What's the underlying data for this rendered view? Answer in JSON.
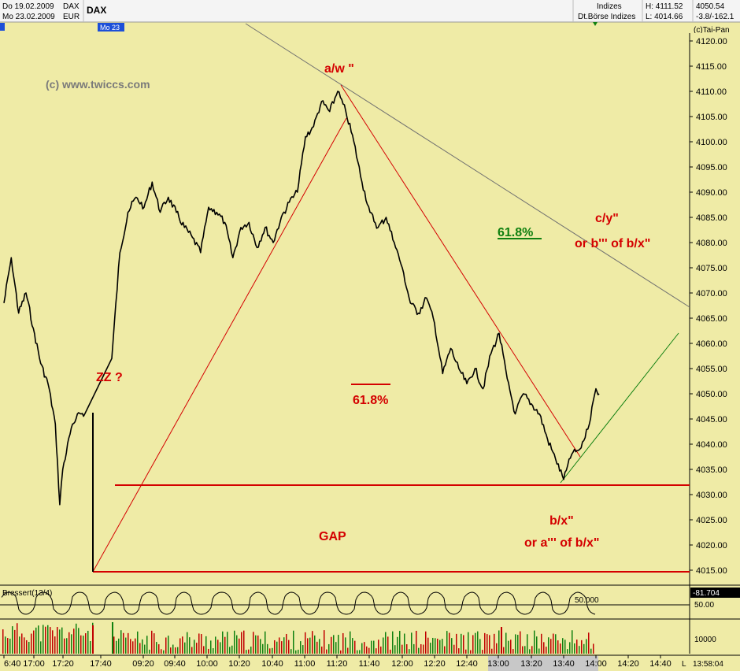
{
  "colors": {
    "background": "#efeba6",
    "price": "#000000",
    "red": "#d40000",
    "green": "#108010",
    "trendline": "#707070"
  },
  "header": {
    "date_prev": "Do 19.02.2009",
    "date_cur": "Mo 23.02.2009",
    "symbol_code": "DAX",
    "currency": "EUR",
    "title": "DAX",
    "category": "Indizes",
    "exchange": "Dt.Börse Indizes",
    "high": "H: 4111.52",
    "low": "L: 4014.66",
    "last": "4050.54",
    "change": "-3.8/-162.1",
    "date_marker": "Mo 23",
    "copyright": "(c)Tai-Pan"
  },
  "watermark": "(c) www.twiccs.com",
  "chart_data": {
    "type": "line",
    "title": "DAX",
    "ylim": [
      4012,
      4124
    ],
    "y_ticks": [
      "4120.00",
      "4115.00",
      "4110.00",
      "4105.00",
      "4100.00",
      "4095.00",
      "4090.00",
      "4085.00",
      "4080.00",
      "4075.00",
      "4070.00",
      "4065.00",
      "4060.00",
      "4055.00",
      "4050.00",
      "4045.00",
      "4040.00",
      "4035.00",
      "4030.00",
      "4025.00",
      "4020.00",
      "4015.00"
    ],
    "x_ticks": [
      "6:40",
      "17:00",
      "17:20",
      "17:40",
      "09:20",
      "09:40",
      "10:00",
      "10:20",
      "10:40",
      "11:00",
      "11:20",
      "11:40",
      "12:00",
      "12:20",
      "12:40",
      "13:00",
      "13:20",
      "13:40",
      "14:00",
      "14:20",
      "14:40"
    ],
    "price_series": [
      {
        "t": "16:40",
        "v": 4068
      },
      {
        "t": "16:45",
        "v": 4077
      },
      {
        "t": "16:50",
        "v": 4066
      },
      {
        "t": "16:55",
        "v": 4070
      },
      {
        "t": "17:00",
        "v": 4063
      },
      {
        "t": "17:05",
        "v": 4056
      },
      {
        "t": "17:10",
        "v": 4052
      },
      {
        "t": "17:15",
        "v": 4044
      },
      {
        "t": "17:18",
        "v": 4028
      },
      {
        "t": "17:20",
        "v": 4035
      },
      {
        "t": "17:25",
        "v": 4042
      },
      {
        "t": "17:30",
        "v": 4046
      },
      {
        "t": "17:35",
        "v": 4046
      },
      {
        "t": "09:00",
        "v": 4057
      },
      {
        "t": "09:05",
        "v": 4078
      },
      {
        "t": "09:10",
        "v": 4086
      },
      {
        "t": "09:15",
        "v": 4089
      },
      {
        "t": "09:20",
        "v": 4087
      },
      {
        "t": "09:25",
        "v": 4092
      },
      {
        "t": "09:30",
        "v": 4086
      },
      {
        "t": "09:35",
        "v": 4089
      },
      {
        "t": "09:40",
        "v": 4086
      },
      {
        "t": "09:45",
        "v": 4083
      },
      {
        "t": "09:50",
        "v": 4081
      },
      {
        "t": "09:55",
        "v": 4078
      },
      {
        "t": "10:00",
        "v": 4087
      },
      {
        "t": "10:05",
        "v": 4086
      },
      {
        "t": "10:10",
        "v": 4084
      },
      {
        "t": "10:15",
        "v": 4077
      },
      {
        "t": "10:20",
        "v": 4083
      },
      {
        "t": "10:25",
        "v": 4084
      },
      {
        "t": "10:30",
        "v": 4079
      },
      {
        "t": "10:35",
        "v": 4083
      },
      {
        "t": "10:40",
        "v": 4080
      },
      {
        "t": "10:45",
        "v": 4085
      },
      {
        "t": "10:50",
        "v": 4088
      },
      {
        "t": "10:55",
        "v": 4090
      },
      {
        "t": "11:00",
        "v": 4101
      },
      {
        "t": "11:05",
        "v": 4103
      },
      {
        "t": "11:10",
        "v": 4108
      },
      {
        "t": "11:15",
        "v": 4106
      },
      {
        "t": "11:20",
        "v": 4110
      },
      {
        "t": "11:25",
        "v": 4106
      },
      {
        "t": "11:30",
        "v": 4100
      },
      {
        "t": "11:35",
        "v": 4092
      },
      {
        "t": "11:40",
        "v": 4086
      },
      {
        "t": "11:45",
        "v": 4083
      },
      {
        "t": "11:50",
        "v": 4085
      },
      {
        "t": "11:55",
        "v": 4080
      },
      {
        "t": "12:00",
        "v": 4075
      },
      {
        "t": "12:05",
        "v": 4068
      },
      {
        "t": "12:10",
        "v": 4066
      },
      {
        "t": "12:15",
        "v": 4069
      },
      {
        "t": "12:20",
        "v": 4064
      },
      {
        "t": "12:25",
        "v": 4054
      },
      {
        "t": "12:30",
        "v": 4059
      },
      {
        "t": "12:35",
        "v": 4055
      },
      {
        "t": "12:40",
        "v": 4052
      },
      {
        "t": "12:45",
        "v": 4055
      },
      {
        "t": "12:50",
        "v": 4051
      },
      {
        "t": "12:55",
        "v": 4058
      },
      {
        "t": "13:00",
        "v": 4062
      },
      {
        "t": "13:05",
        "v": 4053
      },
      {
        "t": "13:10",
        "v": 4046
      },
      {
        "t": "13:15",
        "v": 4050
      },
      {
        "t": "13:20",
        "v": 4048
      },
      {
        "t": "13:25",
        "v": 4046
      },
      {
        "t": "13:30",
        "v": 4041
      },
      {
        "t": "13:35",
        "v": 4037
      },
      {
        "t": "13:40",
        "v": 4033
      },
      {
        "t": "13:45",
        "v": 4038
      },
      {
        "t": "13:50",
        "v": 4039
      },
      {
        "t": "13:55",
        "v": 4043
      },
      {
        "t": "14:00",
        "v": 4051
      },
      {
        "t": "14:02",
        "v": 4050
      }
    ],
    "annotations": [
      {
        "name": "aw-label",
        "text": "a/w \""
      },
      {
        "name": "zz-label",
        "text": "ZZ ?"
      },
      {
        "name": "fib-label-1",
        "text": "61.8%"
      },
      {
        "name": "fib-label-2",
        "text": "61.8%"
      },
      {
        "name": "cy-label",
        "text": "c/y\""
      },
      {
        "name": "cy-alt-label",
        "text": "or b''' of b/x\""
      },
      {
        "name": "gap-label",
        "text": "GAP"
      },
      {
        "name": "bx-label",
        "text": "b/x\""
      },
      {
        "name": "bx-alt-label",
        "text": "or a''' of b/x\""
      }
    ],
    "oscillator": {
      "label": "Bressert(13/4)",
      "last_value": "-81.704",
      "level_label": "50.000",
      "axis_label": "50.00"
    },
    "volume": {
      "axis_label": "10000"
    },
    "clock": "13:58:04",
    "corner": "L"
  }
}
